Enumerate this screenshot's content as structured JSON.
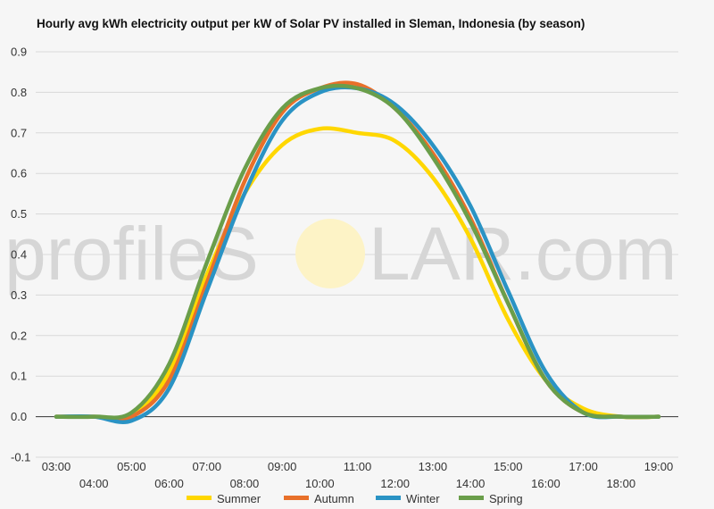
{
  "watermark": {
    "part1": "profileS",
    "part2": "LAR.com"
  },
  "chart_data": {
    "type": "line",
    "title": "Hourly avg kWh electricity output per kW of Solar PV installed in Sleman, Indonesia (by season)",
    "xlabel": "",
    "ylabel": "",
    "x": [
      "03:00",
      "04:00",
      "05:00",
      "06:00",
      "07:00",
      "08:00",
      "09:00",
      "10:00",
      "11:00",
      "12:00",
      "13:00",
      "14:00",
      "15:00",
      "16:00",
      "17:00",
      "18:00",
      "19:00"
    ],
    "ylim": [
      -0.1,
      0.9
    ],
    "yticks": [
      "-0.1",
      "0.0",
      "0.1",
      "0.2",
      "0.3",
      "0.4",
      "0.5",
      "0.6",
      "0.7",
      "0.8",
      "0.9"
    ],
    "grid": true,
    "legend_position": "bottom",
    "series": [
      {
        "name": "Summer",
        "color": "#ffd700",
        "values": [
          0.0,
          0.0,
          0.0,
          0.11,
          0.35,
          0.55,
          0.67,
          0.71,
          0.7,
          0.68,
          0.59,
          0.44,
          0.24,
          0.09,
          0.02,
          0.0,
          0.0
        ]
      },
      {
        "name": "Autumn",
        "color": "#e8702a",
        "values": [
          0.0,
          0.0,
          0.0,
          0.09,
          0.33,
          0.58,
          0.75,
          0.81,
          0.82,
          0.76,
          0.65,
          0.49,
          0.28,
          0.09,
          0.01,
          0.0,
          0.0
        ]
      },
      {
        "name": "Winter",
        "color": "#2a93c4",
        "values": [
          0.0,
          0.0,
          -0.01,
          0.07,
          0.31,
          0.55,
          0.73,
          0.8,
          0.81,
          0.77,
          0.67,
          0.52,
          0.31,
          0.11,
          0.01,
          0.0,
          0.0
        ]
      },
      {
        "name": "Spring",
        "color": "#6a9e4a",
        "values": [
          0.0,
          0.0,
          0.01,
          0.13,
          0.38,
          0.61,
          0.76,
          0.81,
          0.81,
          0.76,
          0.64,
          0.48,
          0.28,
          0.09,
          0.01,
          0.0,
          0.0
        ]
      }
    ]
  }
}
